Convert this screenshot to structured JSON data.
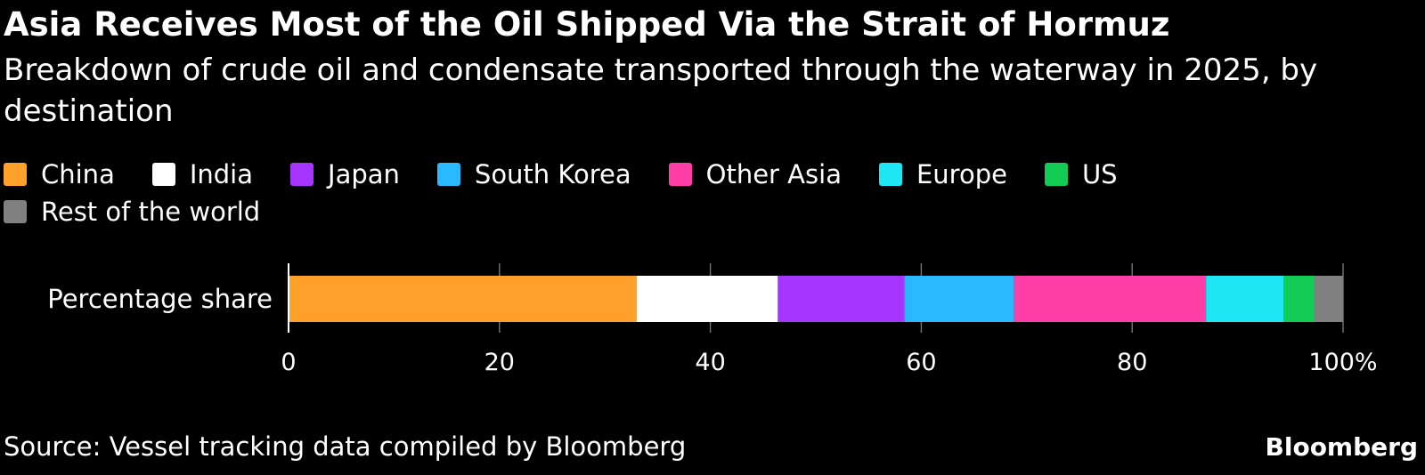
{
  "chart_data": {
    "type": "bar",
    "orientation": "horizontal",
    "stacked": true,
    "title": "Asia Receives Most of the Oil Shipped Via the Strait of Hormuz",
    "subtitle": "Breakdown of crude oil and condensate transported through the waterway in 2025, by destination",
    "categories": [
      "Percentage share"
    ],
    "series": [
      {
        "name": "China",
        "color": "#FFA12B",
        "values": [
          33.0
        ]
      },
      {
        "name": "India",
        "color": "#FFFFFF",
        "values": [
          13.4
        ]
      },
      {
        "name": "Japan",
        "color": "#A635FF",
        "values": [
          12.0
        ]
      },
      {
        "name": "South Korea",
        "color": "#2AB9FF",
        "values": [
          10.4
        ]
      },
      {
        "name": "Other Asia",
        "color": "#FF3EA8",
        "values": [
          18.2
        ]
      },
      {
        "name": "Europe",
        "color": "#1DE6F5",
        "values": [
          7.4
        ]
      },
      {
        "name": "US",
        "color": "#13CC55",
        "values": [
          2.9
        ]
      },
      {
        "name": "Rest of the world",
        "color": "#808080",
        "values": [
          2.7
        ]
      }
    ],
    "xlim": [
      0,
      100
    ],
    "x_ticks": [
      0,
      20,
      40,
      60,
      80,
      100
    ],
    "x_tick_labels": [
      "0",
      "20",
      "40",
      "60",
      "80",
      "100%"
    ],
    "grid": true,
    "legend_position": "top"
  },
  "footer": {
    "source": "Source: Vessel tracking data compiled by Bloomberg",
    "logo": "Bloomberg"
  }
}
